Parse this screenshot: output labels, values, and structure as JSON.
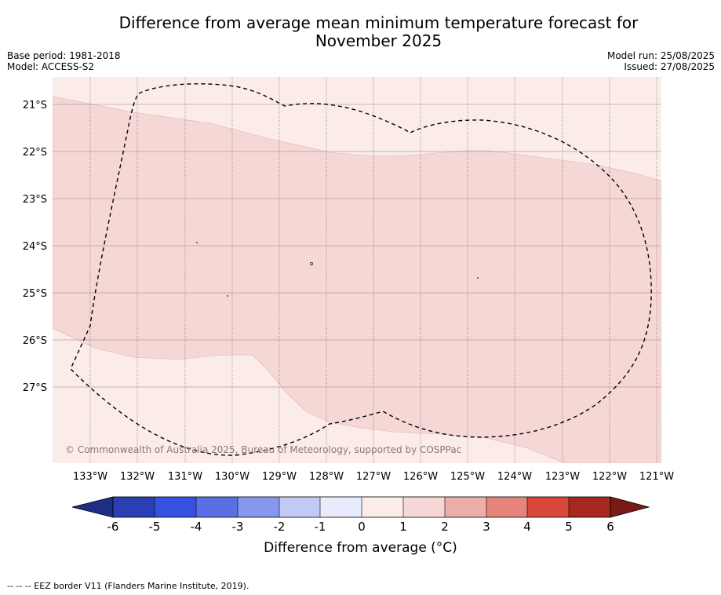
{
  "title_line1": "Difference from average mean minimum temperature forecast for",
  "title_line2": "November 2025",
  "base_period": "Base period: 1981-2018",
  "model": "Model: ACCESS-S2",
  "model_run": "Model run: 25/08/2025",
  "issued": "Issued: 27/08/2025",
  "copyright": "© Commonwealth of Australia 2025, Bureau of Meteorology, supported by COSPPac",
  "footer_note": "--  --  -- EEZ border V11 (Flanders Marine Institute, 2019).",
  "map": {
    "lon_range": [
      -133.8,
      -120.9
    ],
    "lat_range": [
      -28.6,
      -20.4
    ],
    "lon_ticks": [
      "133°W",
      "132°W",
      "131°W",
      "130°W",
      "129°W",
      "128°W",
      "127°W",
      "126°W",
      "125°W",
      "124°W",
      "123°W",
      "122°W",
      "121°W"
    ],
    "lat_ticks": [
      "21°S",
      "22°S",
      "23°S",
      "24°S",
      "25°S",
      "26°S",
      "27°S"
    ],
    "gridlines": true,
    "anomaly_classes_shown": [
      "0 to 1",
      "1 to 2"
    ],
    "colors": {
      "class_0_1": "#fbecea",
      "class_1_2": "#f5d7d5",
      "eez_border": "#000000"
    }
  },
  "colorbar": {
    "label": "Difference from average (°C)",
    "ticks": [
      "-6",
      "-5",
      "-4",
      "-3",
      "-2",
      "-1",
      "0",
      "1",
      "2",
      "3",
      "4",
      "5",
      "6"
    ],
    "colors": [
      "#1c2f85",
      "#2a3fb4",
      "#3451e0",
      "#5a6fe4",
      "#8796ee",
      "#c2c9f6",
      "#e8ebfb",
      "#fbecea",
      "#f5d7d5",
      "#edaea9",
      "#e5847b",
      "#d8473c",
      "#a8271f",
      "#781b15"
    ]
  }
}
